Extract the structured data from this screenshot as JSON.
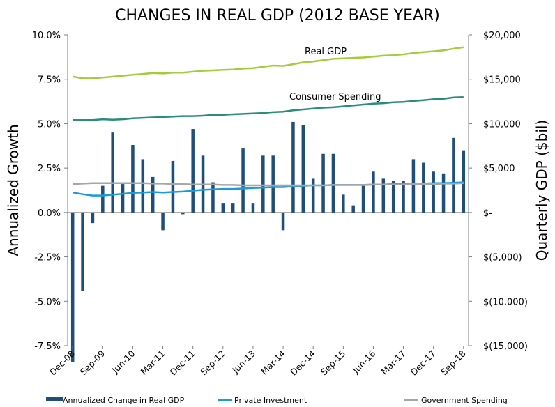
{
  "chart_data": {
    "type": "bar+line",
    "title": "CHANGES IN REAL GDP (2012 BASE YEAR)",
    "ylabel_left": "Annualized Growth",
    "ylabel_right": "Quarterly GDP ($bil)",
    "left_axis": {
      "ylim": [
        -7.5,
        10.0
      ],
      "ticks": [
        -7.5,
        -5.0,
        -2.5,
        0.0,
        2.5,
        5.0,
        7.5,
        10.0
      ],
      "tick_labels": [
        "-7.5%",
        "-5.0%",
        "-2.5%",
        "0.0%",
        "2.5%",
        "5.0%",
        "7.5%",
        "10.0%"
      ]
    },
    "right_axis": {
      "ylim": [
        -15000,
        20000
      ],
      "ticks": [
        -15000,
        -10000,
        -5000,
        0,
        5000,
        10000,
        15000,
        20000
      ],
      "tick_labels": [
        "$(15,000)",
        "$(10,000)",
        "$(5,000)",
        "$-",
        "$5,000",
        "$10,000",
        "$15,000",
        "$20,000"
      ]
    },
    "x_tick_labels": [
      "Dec-08",
      "Sep-09",
      "Jun-10",
      "Mar-11",
      "Dec-11",
      "Sep-12",
      "Jun-13",
      "Mar-14",
      "Dec-14",
      "Sep-15",
      "Jun-16",
      "Mar-17",
      "Dec-17",
      "Sep-18"
    ],
    "x_tick_every": 3,
    "categories_count": 40,
    "bars": {
      "name": "Annualized Change in Real GDP",
      "color": "#1f4e79",
      "values": [
        -8.4,
        -4.4,
        -0.6,
        1.5,
        4.5,
        1.6,
        3.8,
        3.0,
        2.0,
        -1.0,
        2.9,
        -0.1,
        4.7,
        3.2,
        1.7,
        0.5,
        0.5,
        3.6,
        0.5,
        3.2,
        3.2,
        -1.0,
        5.1,
        4.9,
        1.9,
        3.3,
        3.3,
        1.0,
        0.4,
        1.5,
        2.3,
        1.9,
        1.8,
        1.8,
        3.0,
        2.8,
        2.3,
        2.2,
        4.2,
        3.5
      ]
    },
    "lines": [
      {
        "name": "Real GDP",
        "color": "#a4cc3a",
        "axis": "right",
        "values": [
          15300,
          15100,
          15100,
          15200,
          15300,
          15400,
          15500,
          15600,
          15700,
          15650,
          15750,
          15750,
          15850,
          15950,
          16000,
          16050,
          16100,
          16200,
          16250,
          16400,
          16550,
          16500,
          16700,
          16900,
          17000,
          17150,
          17300,
          17350,
          17400,
          17450,
          17550,
          17650,
          17700,
          17800,
          17950,
          18050,
          18150,
          18250,
          18450,
          18600
        ]
      },
      {
        "name": "Consumer Spending",
        "color": "#2a8c7b",
        "axis": "right",
        "values": [
          10400,
          10400,
          10400,
          10500,
          10450,
          10500,
          10600,
          10650,
          10700,
          10750,
          10800,
          10850,
          10850,
          10900,
          11000,
          11000,
          11050,
          11100,
          11150,
          11200,
          11300,
          11350,
          11500,
          11600,
          11700,
          11800,
          11850,
          11950,
          12050,
          12150,
          12250,
          12300,
          12400,
          12450,
          12550,
          12650,
          12750,
          12800,
          12950,
          13000
        ]
      },
      {
        "name": "Private Investment",
        "color": "#1b9cd8",
        "axis": "right",
        "values": [
          2250,
          2050,
          1900,
          1900,
          2000,
          2100,
          2200,
          2250,
          2300,
          2250,
          2300,
          2350,
          2450,
          2550,
          2600,
          2650,
          2650,
          2700,
          2750,
          2800,
          2850,
          2850,
          2950,
          3000,
          3050,
          3050,
          3100,
          3100,
          3100,
          3100,
          3150,
          3150,
          3200,
          3200,
          3250,
          3250,
          3300,
          3300,
          3350,
          3400
        ]
      },
      {
        "name": "Government Spending",
        "color": "#a6a6a6",
        "axis": "right",
        "values": [
          3200,
          3250,
          3300,
          3300,
          3300,
          3300,
          3300,
          3300,
          3250,
          3250,
          3200,
          3200,
          3150,
          3150,
          3150,
          3100,
          3100,
          3050,
          3050,
          3050,
          3050,
          3050,
          3050,
          3050,
          3050,
          3050,
          3100,
          3100,
          3100,
          3100,
          3150,
          3150,
          3150,
          3150,
          3200,
          3200,
          3200,
          3250,
          3250,
          3300
        ]
      }
    ],
    "annotations": [
      "Real GDP",
      "Consumer Spending"
    ],
    "legend": [
      "Annualized Change in Real GDP",
      "Private Investment",
      "Government Spending"
    ],
    "legend_position": "bottom",
    "grid": false
  }
}
